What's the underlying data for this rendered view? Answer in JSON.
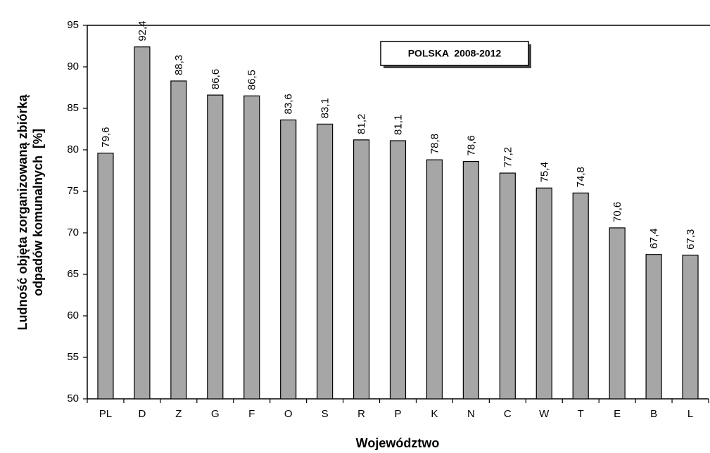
{
  "chart_data": {
    "type": "bar",
    "annotation": "POLSKA  2008-2012",
    "x_label": "Województwo",
    "y_label": [
      "Ludność objęta zorganizowaną zbiórką",
      "odpadów komunalnych  [%]"
    ],
    "categories": [
      "PL",
      "D",
      "Z",
      "G",
      "F",
      "O",
      "S",
      "R",
      "P",
      "K",
      "N",
      "C",
      "W",
      "T",
      "E",
      "B",
      "L"
    ],
    "values": [
      79.6,
      92.4,
      88.3,
      86.6,
      86.5,
      83.6,
      83.1,
      81.2,
      81.1,
      78.8,
      78.6,
      77.2,
      75.4,
      74.8,
      70.6,
      67.4,
      67.3
    ],
    "value_labels": [
      "79,6",
      "92,4",
      "88,3",
      "86,6",
      "86,5",
      "83,6",
      "83,1",
      "81,2",
      "81,1",
      "78,8",
      "78,6",
      "77,2",
      "75,4",
      "74,8",
      "70,6",
      "67,4",
      "67,3"
    ],
    "color": "#a6a6a6",
    "ylim": [
      50,
      95
    ],
    "yticks": [
      50,
      55,
      60,
      65,
      70,
      75,
      80,
      85,
      90,
      95
    ],
    "grid": false
  }
}
